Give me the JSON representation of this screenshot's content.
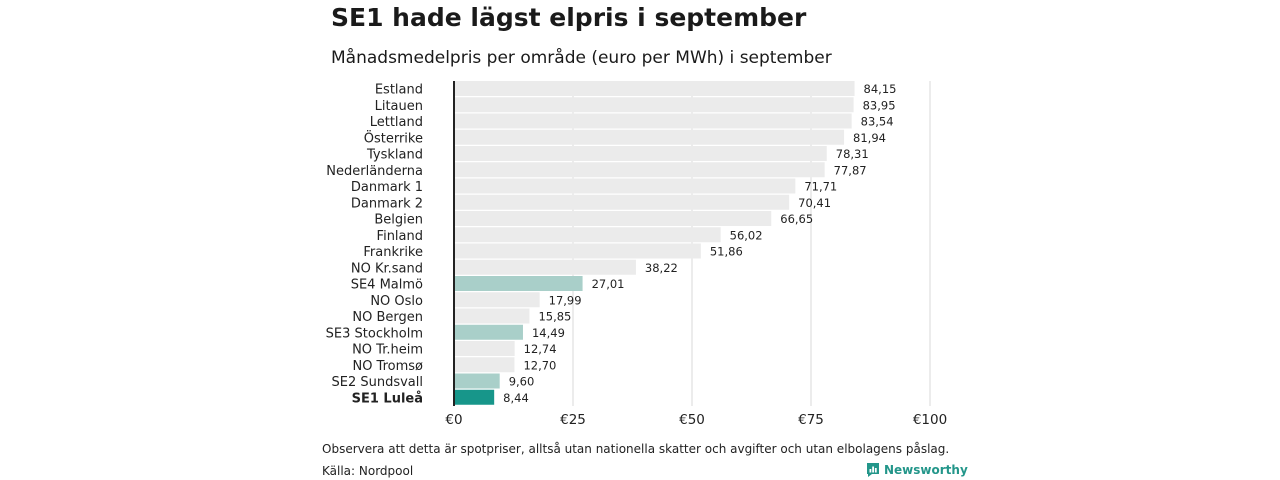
{
  "header": {
    "title": "SE1 hade lägst elpris i september",
    "subtitle": "Månadsmedelpris per område (euro per MWh) i september"
  },
  "footer": {
    "note": "Observera att detta är spotpriser, alltså utan nationella skatter och avgifter och utan elbolagens påslag.",
    "source": "Källa: Nordpool",
    "brand": "Newsworthy",
    "brand_icon": "bar-chart-speech-bubble-icon"
  },
  "chart_data": {
    "type": "bar",
    "orientation": "horizontal",
    "title": "SE1 hade lägst elpris i september",
    "subtitle": "Månadsmedelpris per område (euro per MWh) i september",
    "xlim": [
      0,
      100
    ],
    "x_ticks": [
      0,
      25,
      50,
      75,
      100
    ],
    "x_tick_labels": [
      "€0",
      "€25",
      "€50",
      "€75",
      "€100"
    ],
    "grid": "vertical",
    "categories": [
      "Estland",
      "Litauen",
      "Lettland",
      "Österrike",
      "Tyskland",
      "Nederländerna",
      "Danmark 1",
      "Danmark 2",
      "Belgien",
      "Finland",
      "Frankrike",
      "NO Kr.sand",
      "SE4 Malmö",
      "NO Oslo",
      "NO Bergen",
      "SE3 Stockholm",
      "NO Tr.heim",
      "NO Tromsø",
      "SE2 Sundsvall",
      "SE1 Luleå"
    ],
    "values": [
      84.15,
      83.95,
      83.54,
      81.94,
      78.31,
      77.87,
      71.71,
      70.41,
      66.65,
      56.02,
      51.86,
      38.22,
      27.01,
      17.99,
      15.85,
      14.49,
      12.74,
      12.7,
      9.6,
      8.44
    ],
    "value_labels": [
      "84,15",
      "83,95",
      "83,54",
      "81,94",
      "78,31",
      "77,87",
      "71,71",
      "70,41",
      "66,65",
      "56,02",
      "51,86",
      "38,22",
      "27,01",
      "17,99",
      "15,85",
      "14,49",
      "12,74",
      "12,70",
      "9,60",
      "8,44"
    ],
    "highlighted": [
      "SE4 Malmö",
      "SE3 Stockholm",
      "SE2 Sundsvall",
      "SE1 Luleå"
    ],
    "emphasized": "SE1 Luleå",
    "colors": {
      "bar_default": "#ebebeb",
      "bar_highlight": "#a9cfc9",
      "bar_emphasis": "#17968a",
      "background_bar": "#ebebeb",
      "grid": "#d9d9d9",
      "axis": "#222222"
    }
  }
}
